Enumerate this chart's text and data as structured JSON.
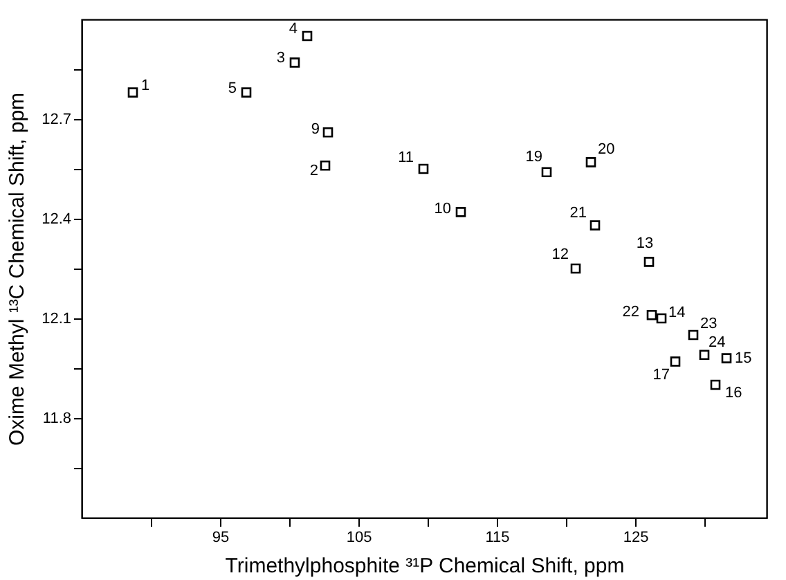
{
  "chart_data": {
    "type": "scatter",
    "xlabel": "Trimethylphosphite ³¹P Chemical Shift, ppm",
    "ylabel": "Oxime Methyl ¹³C Chemical Shift, ppm",
    "xlim": [
      85,
      134.5
    ],
    "ylim": [
      11.5,
      13.0
    ],
    "xticks": [
      {
        "value": 90,
        "label": null
      },
      95,
      {
        "value": 100,
        "label": null
      },
      105,
      {
        "value": 110,
        "label": null
      },
      115,
      {
        "value": 120,
        "label": null
      },
      125,
      {
        "value": 130,
        "label": null
      }
    ],
    "yticks": [
      {
        "value": 11.65,
        "label": null
      },
      11.8,
      {
        "value": 11.95,
        "label": null
      },
      12.1,
      {
        "value": 12.25,
        "label": null
      },
      12.4,
      {
        "value": 12.55,
        "label": null
      },
      12.7,
      {
        "value": 12.85,
        "label": null
      }
    ],
    "grid": false,
    "marker": "square",
    "series": [
      {
        "color": "#000000",
        "x": [
          88.7,
          102.6,
          100.4,
          101.3,
          96.9,
          102.8,
          112.4,
          109.7,
          120.7,
          126.0,
          126.9,
          131.6,
          130.8,
          127.9,
          118.6,
          121.8,
          122.1,
          126.2,
          129.2,
          130.0
        ],
        "values": [
          12.78,
          12.56,
          12.87,
          12.95,
          12.78,
          12.66,
          12.42,
          12.55,
          12.25,
          12.27,
          12.1,
          11.98,
          11.9,
          11.97,
          12.54,
          12.57,
          12.38,
          12.11,
          12.05,
          11.99
        ]
      }
    ],
    "annotations": [
      {
        "text": "1",
        "x": 88.7,
        "y": 12.78
      },
      {
        "text": "2",
        "x": 102.6,
        "y": 12.56
      },
      {
        "text": "3",
        "x": 100.4,
        "y": 12.87
      },
      {
        "text": "4",
        "x": 101.3,
        "y": 12.95
      },
      {
        "text": "5",
        "x": 96.9,
        "y": 12.78
      },
      {
        "text": "9",
        "x": 102.8,
        "y": 12.66
      },
      {
        "text": "10",
        "x": 112.4,
        "y": 12.42
      },
      {
        "text": "11",
        "x": 109.7,
        "y": 12.55
      },
      {
        "text": "12",
        "x": 120.7,
        "y": 12.25
      },
      {
        "text": "13",
        "x": 126.0,
        "y": 12.27
      },
      {
        "text": "14",
        "x": 126.9,
        "y": 12.1
      },
      {
        "text": "15",
        "x": 131.6,
        "y": 11.98
      },
      {
        "text": "16",
        "x": 130.8,
        "y": 11.9
      },
      {
        "text": "17",
        "x": 127.9,
        "y": 11.97
      },
      {
        "text": "19",
        "x": 118.6,
        "y": 12.54
      },
      {
        "text": "20",
        "x": 121.8,
        "y": 12.57
      },
      {
        "text": "21",
        "x": 122.1,
        "y": 12.38
      },
      {
        "text": "22",
        "x": 126.2,
        "y": 12.11
      },
      {
        "text": "23",
        "x": 129.2,
        "y": 12.05
      },
      {
        "text": "24",
        "x": 130.0,
        "y": 11.99
      }
    ]
  }
}
